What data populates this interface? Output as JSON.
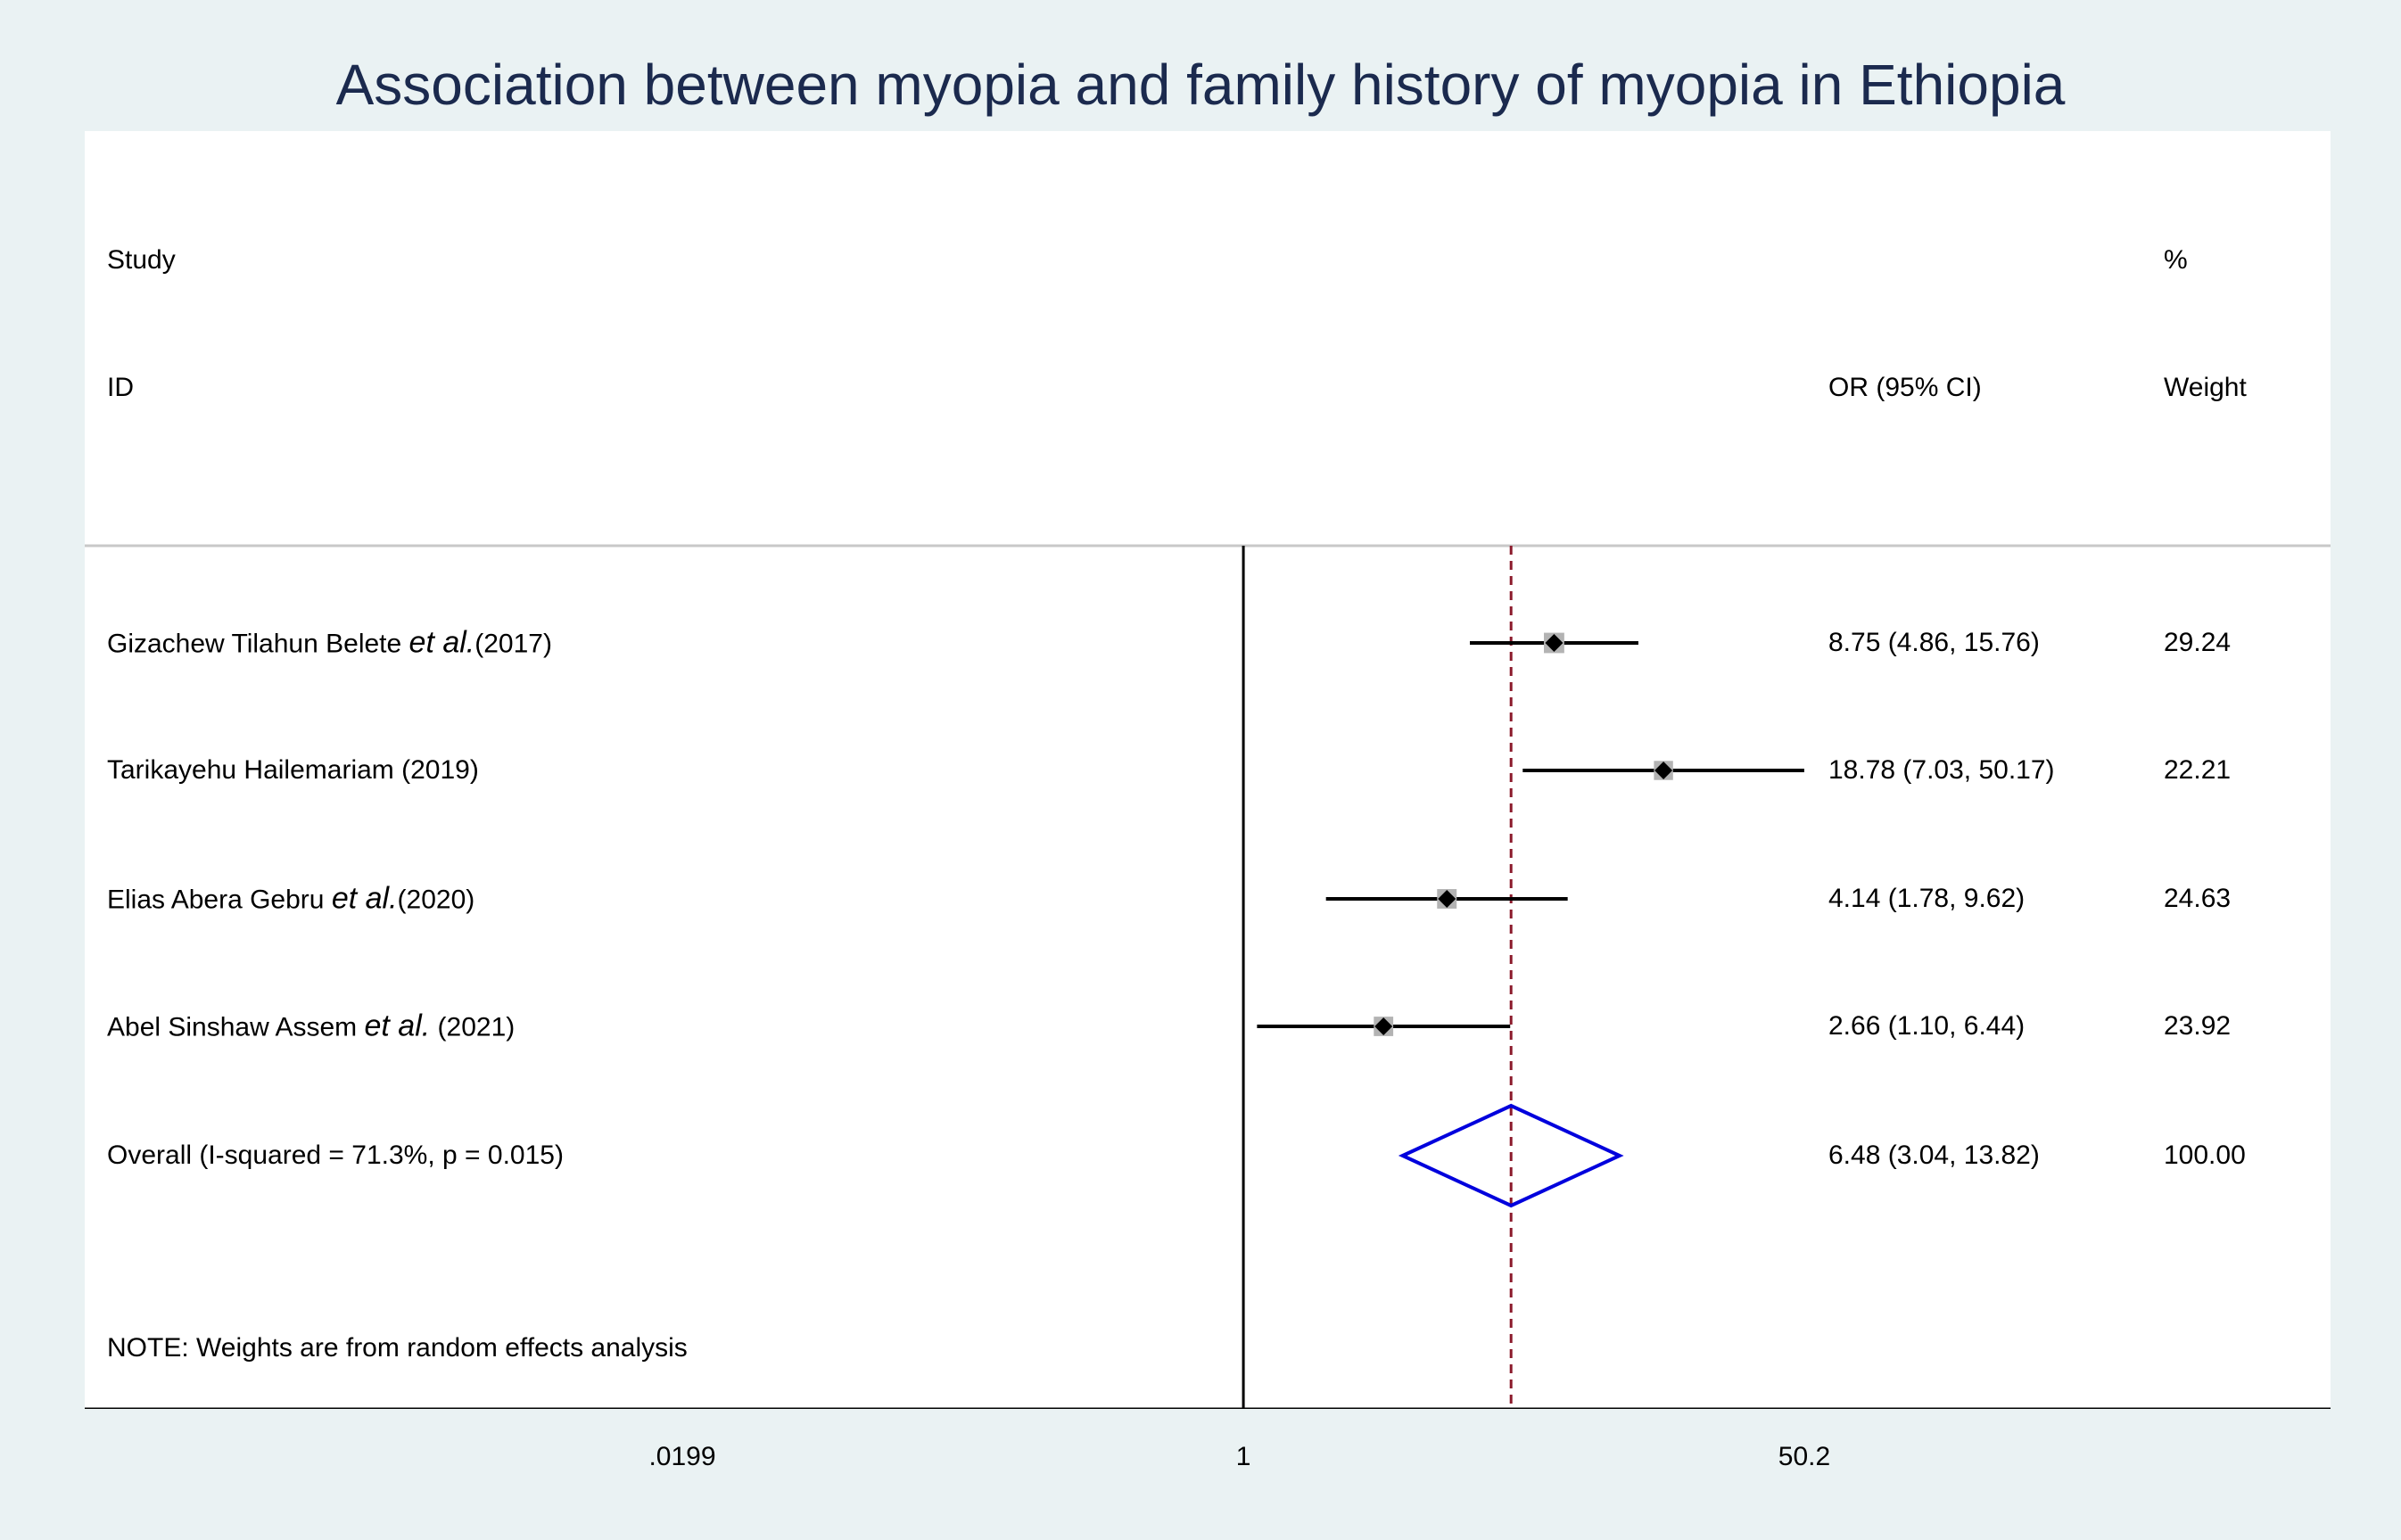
{
  "chart_data": {
    "type": "forest",
    "title": "Association between myopia and family history of myopia in Ethiopia",
    "headers": {
      "study_top": "Study",
      "study_bottom": "ID",
      "effect": "OR (95% CI)",
      "weight_top": "%",
      "weight_bottom": "Weight"
    },
    "studies": [
      {
        "name": "Gizachew Tilahun Belete",
        "etal": "et al.",
        "year": "(2017)",
        "or": 8.75,
        "lo": 4.86,
        "hi": 15.76,
        "ci_text": "8.75 (4.86, 15.76)",
        "weight": 29.24,
        "weight_text": "29.24"
      },
      {
        "name": "Tarikayehu Hailemariam",
        "etal": "",
        "year": "(2019)",
        "or": 18.78,
        "lo": 7.03,
        "hi": 50.17,
        "ci_text": "18.78 (7.03, 50.17)",
        "weight": 22.21,
        "weight_text": "22.21"
      },
      {
        "name": "Elias Abera Gebru",
        "etal": "et al.",
        "year": "(2020)",
        "or": 4.14,
        "lo": 1.78,
        "hi": 9.62,
        "ci_text": "4.14 (1.78, 9.62)",
        "weight": 24.63,
        "weight_text": "24.63"
      },
      {
        "name": "Abel Sinshaw Assem",
        "etal": "et al.",
        "year": " (2021)",
        "or": 2.66,
        "lo": 1.1,
        "hi": 6.44,
        "ci_text": "2.66 (1.10, 6.44)",
        "weight": 23.92,
        "weight_text": "23.92"
      }
    ],
    "overall": {
      "label": "Overall  (I-squared = 71.3%, p = 0.015)",
      "or": 6.48,
      "lo": 3.04,
      "hi": 13.82,
      "ci_text": "6.48 (3.04, 13.82)",
      "weight_text": "100.00"
    },
    "note": "NOTE: Weights are from random effects analysis",
    "x_axis": {
      "scale": "log",
      "ticks": [
        0.0199,
        1,
        50.2
      ],
      "tick_labels": [
        ".0199",
        "1",
        "50.2"
      ],
      "range": [
        0.0199,
        50.2
      ]
    },
    "colors": {
      "title": "#1b2a4e",
      "background": "#eaf2f3",
      "panel": "#ffffff",
      "overall_diamond": "#0000dd",
      "overall_line": "#8b1a2b",
      "weight_box": "#b3b3b3",
      "point": "#000000"
    }
  }
}
